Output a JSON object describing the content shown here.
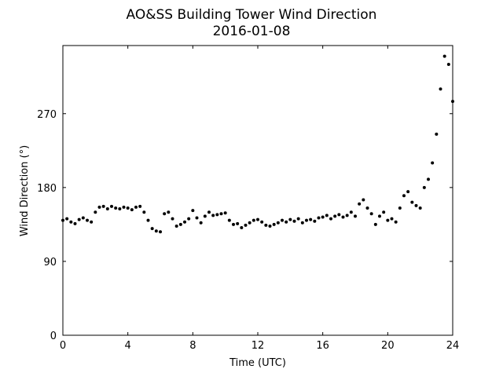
{
  "chart_data": {
    "type": "scatter",
    "title": "AO&SS Building Tower Wind Direction",
    "subtitle": "2016-01-08",
    "x_label": "Time (UTC)",
    "y_label": "Wind Direction (°)",
    "color": "#000000",
    "xlim": [
      0,
      24
    ],
    "xticks": [
      0,
      4,
      8,
      12,
      16,
      20,
      24
    ],
    "ylim": [
      0,
      353
    ],
    "yticks": [
      0,
      90,
      180,
      270
    ],
    "x": [
      0,
      0.25,
      0.5,
      0.75,
      1,
      1.25,
      1.5,
      1.75,
      2,
      2.25,
      2.5,
      2.75,
      3,
      3.25,
      3.5,
      3.75,
      4,
      4.25,
      4.5,
      4.75,
      5,
      5.25,
      5.5,
      5.75,
      6,
      6.25,
      6.5,
      6.75,
      7,
      7.25,
      7.5,
      7.75,
      8,
      8.25,
      8.5,
      8.75,
      9,
      9.25,
      9.5,
      9.75,
      10,
      10.25,
      10.5,
      10.75,
      11,
      11.25,
      11.5,
      11.75,
      12,
      12.25,
      12.5,
      12.75,
      13,
      13.25,
      13.5,
      13.75,
      14,
      14.25,
      14.5,
      14.75,
      15,
      15.25,
      15.5,
      15.75,
      16,
      16.25,
      16.5,
      16.75,
      17,
      17.25,
      17.5,
      17.75,
      18,
      18.25,
      18.5,
      18.75,
      19,
      19.25,
      19.5,
      19.75,
      20,
      20.25,
      20.5,
      20.75,
      21,
      21.25,
      21.5,
      21.75,
      22,
      22.25,
      22.5,
      22.75,
      23,
      23.25,
      23.5,
      23.75,
      24
    ],
    "values": [
      140,
      142,
      138,
      136,
      141,
      143,
      140,
      138,
      150,
      156,
      157,
      154,
      157,
      155,
      154,
      156,
      155,
      153,
      156,
      157,
      150,
      140,
      130,
      127,
      126,
      148,
      150,
      142,
      133,
      135,
      138,
      142,
      152,
      143,
      137,
      145,
      150,
      146,
      147,
      148,
      149,
      140,
      135,
      136,
      131,
      134,
      137,
      140,
      141,
      138,
      134,
      133,
      135,
      137,
      140,
      138,
      141,
      139,
      142,
      137,
      140,
      141,
      139,
      143,
      144,
      146,
      142,
      145,
      147,
      144,
      146,
      150,
      145,
      160,
      165,
      155,
      148,
      135,
      145,
      150,
      140,
      142,
      138,
      155,
      170,
      175,
      162,
      158,
      155,
      180,
      190,
      210,
      245,
      300,
      340,
      330,
      285
    ]
  }
}
